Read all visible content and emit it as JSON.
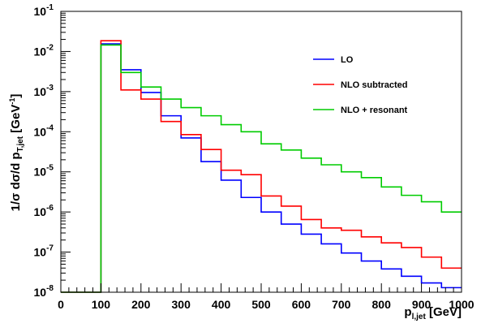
{
  "chart_data": {
    "type": "line",
    "step": true,
    "x_edges": [
      0,
      50,
      100,
      150,
      200,
      250,
      300,
      350,
      400,
      450,
      500,
      550,
      600,
      650,
      700,
      750,
      800,
      850,
      900,
      950,
      1000
    ],
    "series": [
      {
        "name": "LO",
        "color": "#0000ff",
        "values": [
          1e-08,
          1e-08,
          0.0155,
          0.0035,
          0.00095,
          0.00025,
          7e-05,
          1.8e-05,
          6.2e-06,
          2.3e-06,
          1e-06,
          5e-07,
          2.8e-07,
          1.6e-07,
          9.5e-08,
          6e-08,
          3.8e-08,
          2.5e-08,
          1.7e-08,
          1.3e-08
        ]
      },
      {
        "name": "NLO subtracted",
        "color": "#ff0000",
        "values": [
          1e-08,
          1e-08,
          0.0185,
          0.0011,
          0.00065,
          0.00018,
          8.5e-05,
          3.6e-05,
          1.1e-05,
          8.5e-06,
          2.5e-06,
          1.4e-06,
          6.5e-07,
          4e-07,
          3.5e-07,
          2.4e-07,
          1.7e-07,
          1.3e-07,
          7.5e-08,
          4e-08
        ]
      },
      {
        "name": "NLO + resonant",
        "color": "#00cc00",
        "values": [
          1e-08,
          1e-08,
          0.0145,
          0.003,
          0.0013,
          0.00065,
          0.0004,
          0.00025,
          0.00015,
          0.0001,
          5e-05,
          3.5e-05,
          2.2e-05,
          1.5e-05,
          1e-05,
          7.2e-06,
          4.2e-06,
          2.6e-06,
          1.8e-06,
          1e-06
        ]
      }
    ],
    "xlim": [
      0,
      1000
    ],
    "ylim": [
      1e-08,
      0.1
    ],
    "y_scale": "log",
    "grid": false,
    "legend_position": "top-right",
    "x_ticks": [
      "0",
      "100",
      "200",
      "300",
      "400",
      "500",
      "600",
      "700",
      "800",
      "900",
      "1000"
    ],
    "y_tick_exponents": [
      "-8",
      "-7",
      "-6",
      "-5",
      "-4",
      "-3",
      "-2",
      "-1"
    ],
    "y_tick_base": "10",
    "xlabel": {
      "main": "p",
      "sub": "l,jet",
      "unit": " [GeV]"
    },
    "ylabel": {
      "main": "1/σ dσ/d p",
      "sub": "T,jet",
      "unit": " [GeV",
      "unit_sup": "-1",
      "close": "]"
    }
  }
}
